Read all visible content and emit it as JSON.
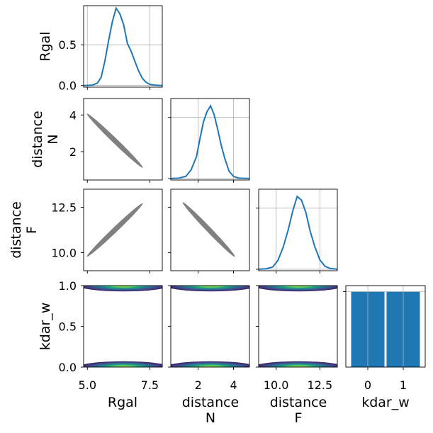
{
  "chart_data": {
    "type": "corner",
    "variables": [
      "Rgal",
      "distance N",
      "distance F",
      "kdar_w"
    ],
    "axis_labels": {
      "Rgal": [
        "Rgal"
      ],
      "distance_N": [
        "distance",
        "N"
      ],
      "distance_F": [
        "distance",
        "F"
      ],
      "kdar_w": [
        "kdar_w"
      ]
    },
    "ranges": {
      "Rgal": [
        4.85,
        8.0
      ],
      "distance_N": [
        0.45,
        4.9
      ],
      "distance_F": [
        9.0,
        13.5
      ],
      "kdar_w": [
        0,
        1
      ],
      "kdar_w_hist_x": [
        -0.62,
        1.62
      ]
    },
    "ticks": {
      "Rgal_x": [
        "5.0",
        "7.5"
      ],
      "Rgal_x_values": [
        5.0,
        7.5
      ],
      "distance_N_x": [
        "2",
        "4"
      ],
      "distance_N_x_values": [
        2,
        4
      ],
      "distance_F_x": [
        "10.0",
        "12.5"
      ],
      "distance_F_x_values": [
        10.0,
        12.5
      ],
      "kdar_w_x": [
        "0",
        "1"
      ],
      "kdar_w_x_values": [
        0,
        1
      ],
      "Rgal_density_y": [
        "0.0",
        "0.5"
      ],
      "Rgal_density_y_values": [
        0.0,
        0.5
      ],
      "distance_N_y": [
        "2",
        "4"
      ],
      "distance_N_y_values": [
        2,
        4
      ],
      "distance_F_y": [
        "10.0",
        "12.5"
      ],
      "distance_F_y_values": [
        10.0,
        12.5
      ],
      "kdar_w_y": [
        "0.0",
        "0.5",
        "1.0"
      ],
      "kdar_w_y_values": [
        0.0,
        0.5,
        1.0
      ]
    },
    "diagonal": [
      {
        "variable": "Rgal",
        "y_range": [
          -0.02,
          0.98
        ],
        "x": [
          4.85,
          5.2,
          5.4,
          5.55,
          5.7,
          5.85,
          6.0,
          6.15,
          6.3,
          6.45,
          6.6,
          6.75,
          6.9,
          7.05,
          7.2,
          7.35,
          7.5,
          7.7,
          8.0
        ],
        "y": [
          0.0,
          0.005,
          0.03,
          0.1,
          0.3,
          0.55,
          0.78,
          0.95,
          0.88,
          0.75,
          0.52,
          0.42,
          0.3,
          0.18,
          0.09,
          0.04,
          0.015,
          0.005,
          0.0
        ]
      },
      {
        "variable": "distance_N",
        "y_range": [
          -0.02,
          1.1
        ],
        "x": [
          0.45,
          0.9,
          1.3,
          1.6,
          1.9,
          2.1,
          2.3,
          2.5,
          2.7,
          2.9,
          3.1,
          3.3,
          3.5,
          3.75,
          4.0,
          4.3,
          4.9
        ],
        "y": [
          0.0,
          0.005,
          0.03,
          0.12,
          0.3,
          0.55,
          0.78,
          0.92,
          1.0,
          0.88,
          0.68,
          0.46,
          0.28,
          0.1,
          0.03,
          0.005,
          0.0
        ]
      },
      {
        "variable": "distance_F",
        "y_range": [
          -0.02,
          1.1
        ],
        "x": [
          9.0,
          9.4,
          9.8,
          10.1,
          10.4,
          10.7,
          10.95,
          11.2,
          11.45,
          11.7,
          11.95,
          12.2,
          12.5,
          12.8,
          13.1,
          13.5
        ],
        "y": [
          0.0,
          0.005,
          0.03,
          0.12,
          0.3,
          0.55,
          0.8,
          1.0,
          0.95,
          0.78,
          0.52,
          0.32,
          0.13,
          0.04,
          0.01,
          0.0
        ]
      },
      {
        "variable": "kdar_w",
        "type": "bar",
        "categories": [
          0,
          1
        ],
        "values": [
          0.5,
          0.5
        ],
        "y_range": [
          0,
          0.54
        ],
        "color": "#1f77b4"
      }
    ],
    "scatter_panels": [
      {
        "x_var": "Rgal",
        "y_var": "distance_N",
        "trend_start": [
          5.0,
          4.05
        ],
        "trend_end": [
          7.2,
          1.15
        ],
        "color": "#808080"
      },
      {
        "x_var": "Rgal",
        "y_var": "distance_F",
        "trend_start": [
          5.0,
          9.8
        ],
        "trend_end": [
          7.2,
          12.7
        ],
        "color": "#808080"
      },
      {
        "x_var": "distance_N",
        "y_var": "distance_F",
        "trend_start": [
          1.15,
          12.75
        ],
        "trend_end": [
          4.05,
          9.8
        ],
        "color": "#808080"
      }
    ],
    "kde_panels": [
      {
        "x_var": "Rgal",
        "y_var": "kdar_w",
        "levels_y": [
          0,
          1
        ]
      },
      {
        "x_var": "distance_N",
        "y_var": "kdar_w",
        "levels_y": [
          0,
          1
        ]
      },
      {
        "x_var": "distance_F",
        "y_var": "kdar_w",
        "levels_y": [
          0,
          1
        ]
      }
    ],
    "kde_colors": [
      "#3b2a6b",
      "#433d84",
      "#38598c",
      "#2c728e",
      "#21908d",
      "#27ad81",
      "#5cc863",
      "#7ad151"
    ],
    "line_color": "#1f77b4",
    "grid_color": "#b0b0b0",
    "grid": true
  }
}
